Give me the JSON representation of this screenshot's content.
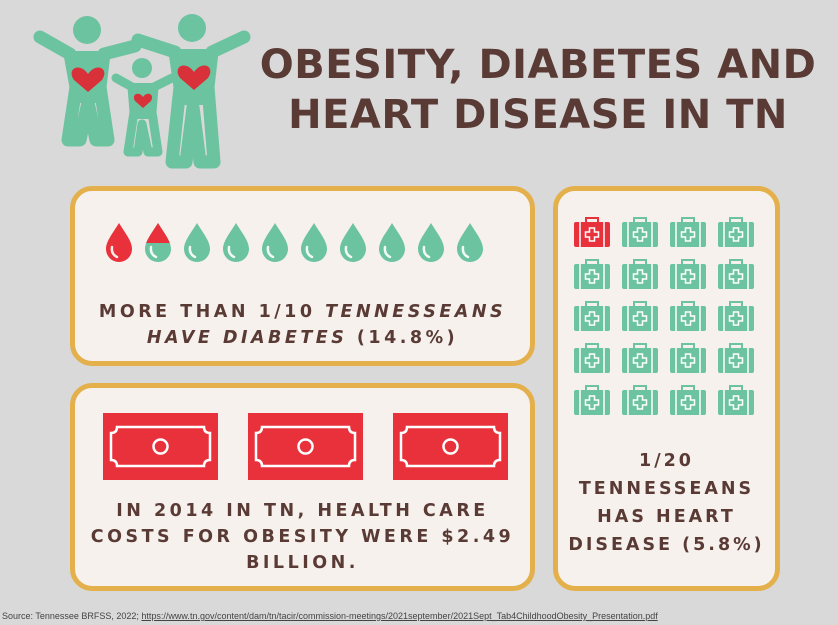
{
  "header": {
    "title_line1": "OBESITY, DIABETES AND",
    "title_line2": "HEART DISEASE IN TN",
    "logo_icon": "family-hearts-icon"
  },
  "diabetes": {
    "drops_total": 10,
    "drops_full_red": 1,
    "drops_half_red": 1,
    "caption_line1_prefix": "MORE THAN 1/10 ",
    "caption_line1_italic": "TENNESSEANS",
    "caption_line2_italic": "HAVE DIABETES",
    "caption_line2_suffix": " (14.8%)",
    "icon": "blood-drop-icon"
  },
  "cost": {
    "bills_count": 3,
    "caption_line1": "IN 2014 IN TN, HEALTH CARE",
    "caption_line2": "COSTS FOR OBESITY WERE $2.49",
    "caption_line3": "BILLION.",
    "icon": "dollar-bill-icon"
  },
  "heart": {
    "kits_total": 20,
    "kits_red": 1,
    "caption_line1": "1/20",
    "caption_line2": "TENNESSEANS",
    "caption_line3": "HAS HEART",
    "caption_line4": "DISEASE (5.8%)",
    "icon": "medical-kit-icon"
  },
  "source": {
    "prefix": "Source: Tennessee BRFSS, 2022; ",
    "link": "https://www.tn.gov/content/dam/tn/tacir/commission-meetings/2021september/2021Sept_Tab4ChildhoodObesity_Presentation.pdf"
  },
  "colors": {
    "teal": "#6cc3a0",
    "red": "#e8313a",
    "brown": "#5a3a35",
    "gold": "#e3b04b",
    "card_bg": "#f6f1ec",
    "page_bg": "#d9d9d9"
  }
}
